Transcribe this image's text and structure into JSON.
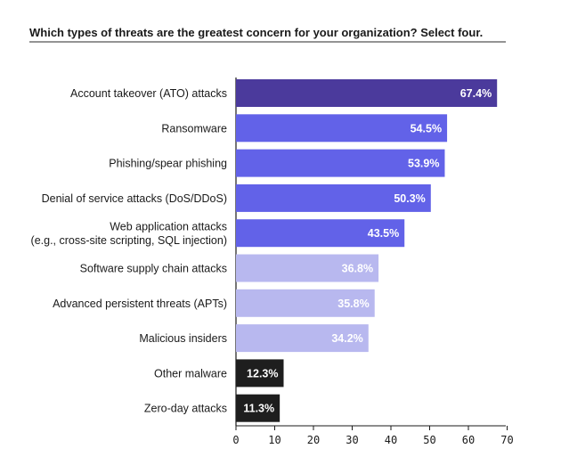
{
  "chart_data": {
    "type": "bar",
    "orientation": "horizontal",
    "title": "Which types of threats are the greatest concern for your organization? Select four.",
    "categories": [
      [
        "Account takeover (ATO) attacks"
      ],
      [
        "Ransomware"
      ],
      [
        "Phishing/spear phishing"
      ],
      [
        "Denial of service attacks (DoS/DDoS)"
      ],
      [
        "Web application attacks",
        "(e.g., cross-site scripting, SQL injection)"
      ],
      [
        "Software supply chain attacks"
      ],
      [
        "Advanced persistent threats (APTs)"
      ],
      [
        "Malicious insiders"
      ],
      [
        "Other malware"
      ],
      [
        "Zero-day attacks"
      ]
    ],
    "values": [
      67.4,
      54.5,
      53.9,
      50.3,
      43.5,
      36.8,
      35.8,
      34.2,
      12.3,
      11.3
    ],
    "value_labels": [
      "67.4%",
      "54.5%",
      "53.9%",
      "50.3%",
      "43.5%",
      "36.8%",
      "35.8%",
      "34.2%",
      "12.3%",
      "11.3%"
    ],
    "bar_colors": [
      "#4b3a9c",
      "#6262e8",
      "#6262e8",
      "#6262e8",
      "#6262e8",
      "#b8b8ef",
      "#b8b8ef",
      "#b8b8ef",
      "#1e1e1e",
      "#1e1e1e"
    ],
    "xlim": [
      0,
      70
    ],
    "xticks": [
      "0",
      "10",
      "20",
      "30",
      "40",
      "50",
      "60",
      "70"
    ],
    "xlabel": "",
    "ylabel": "",
    "grid": false,
    "legend": false
  }
}
